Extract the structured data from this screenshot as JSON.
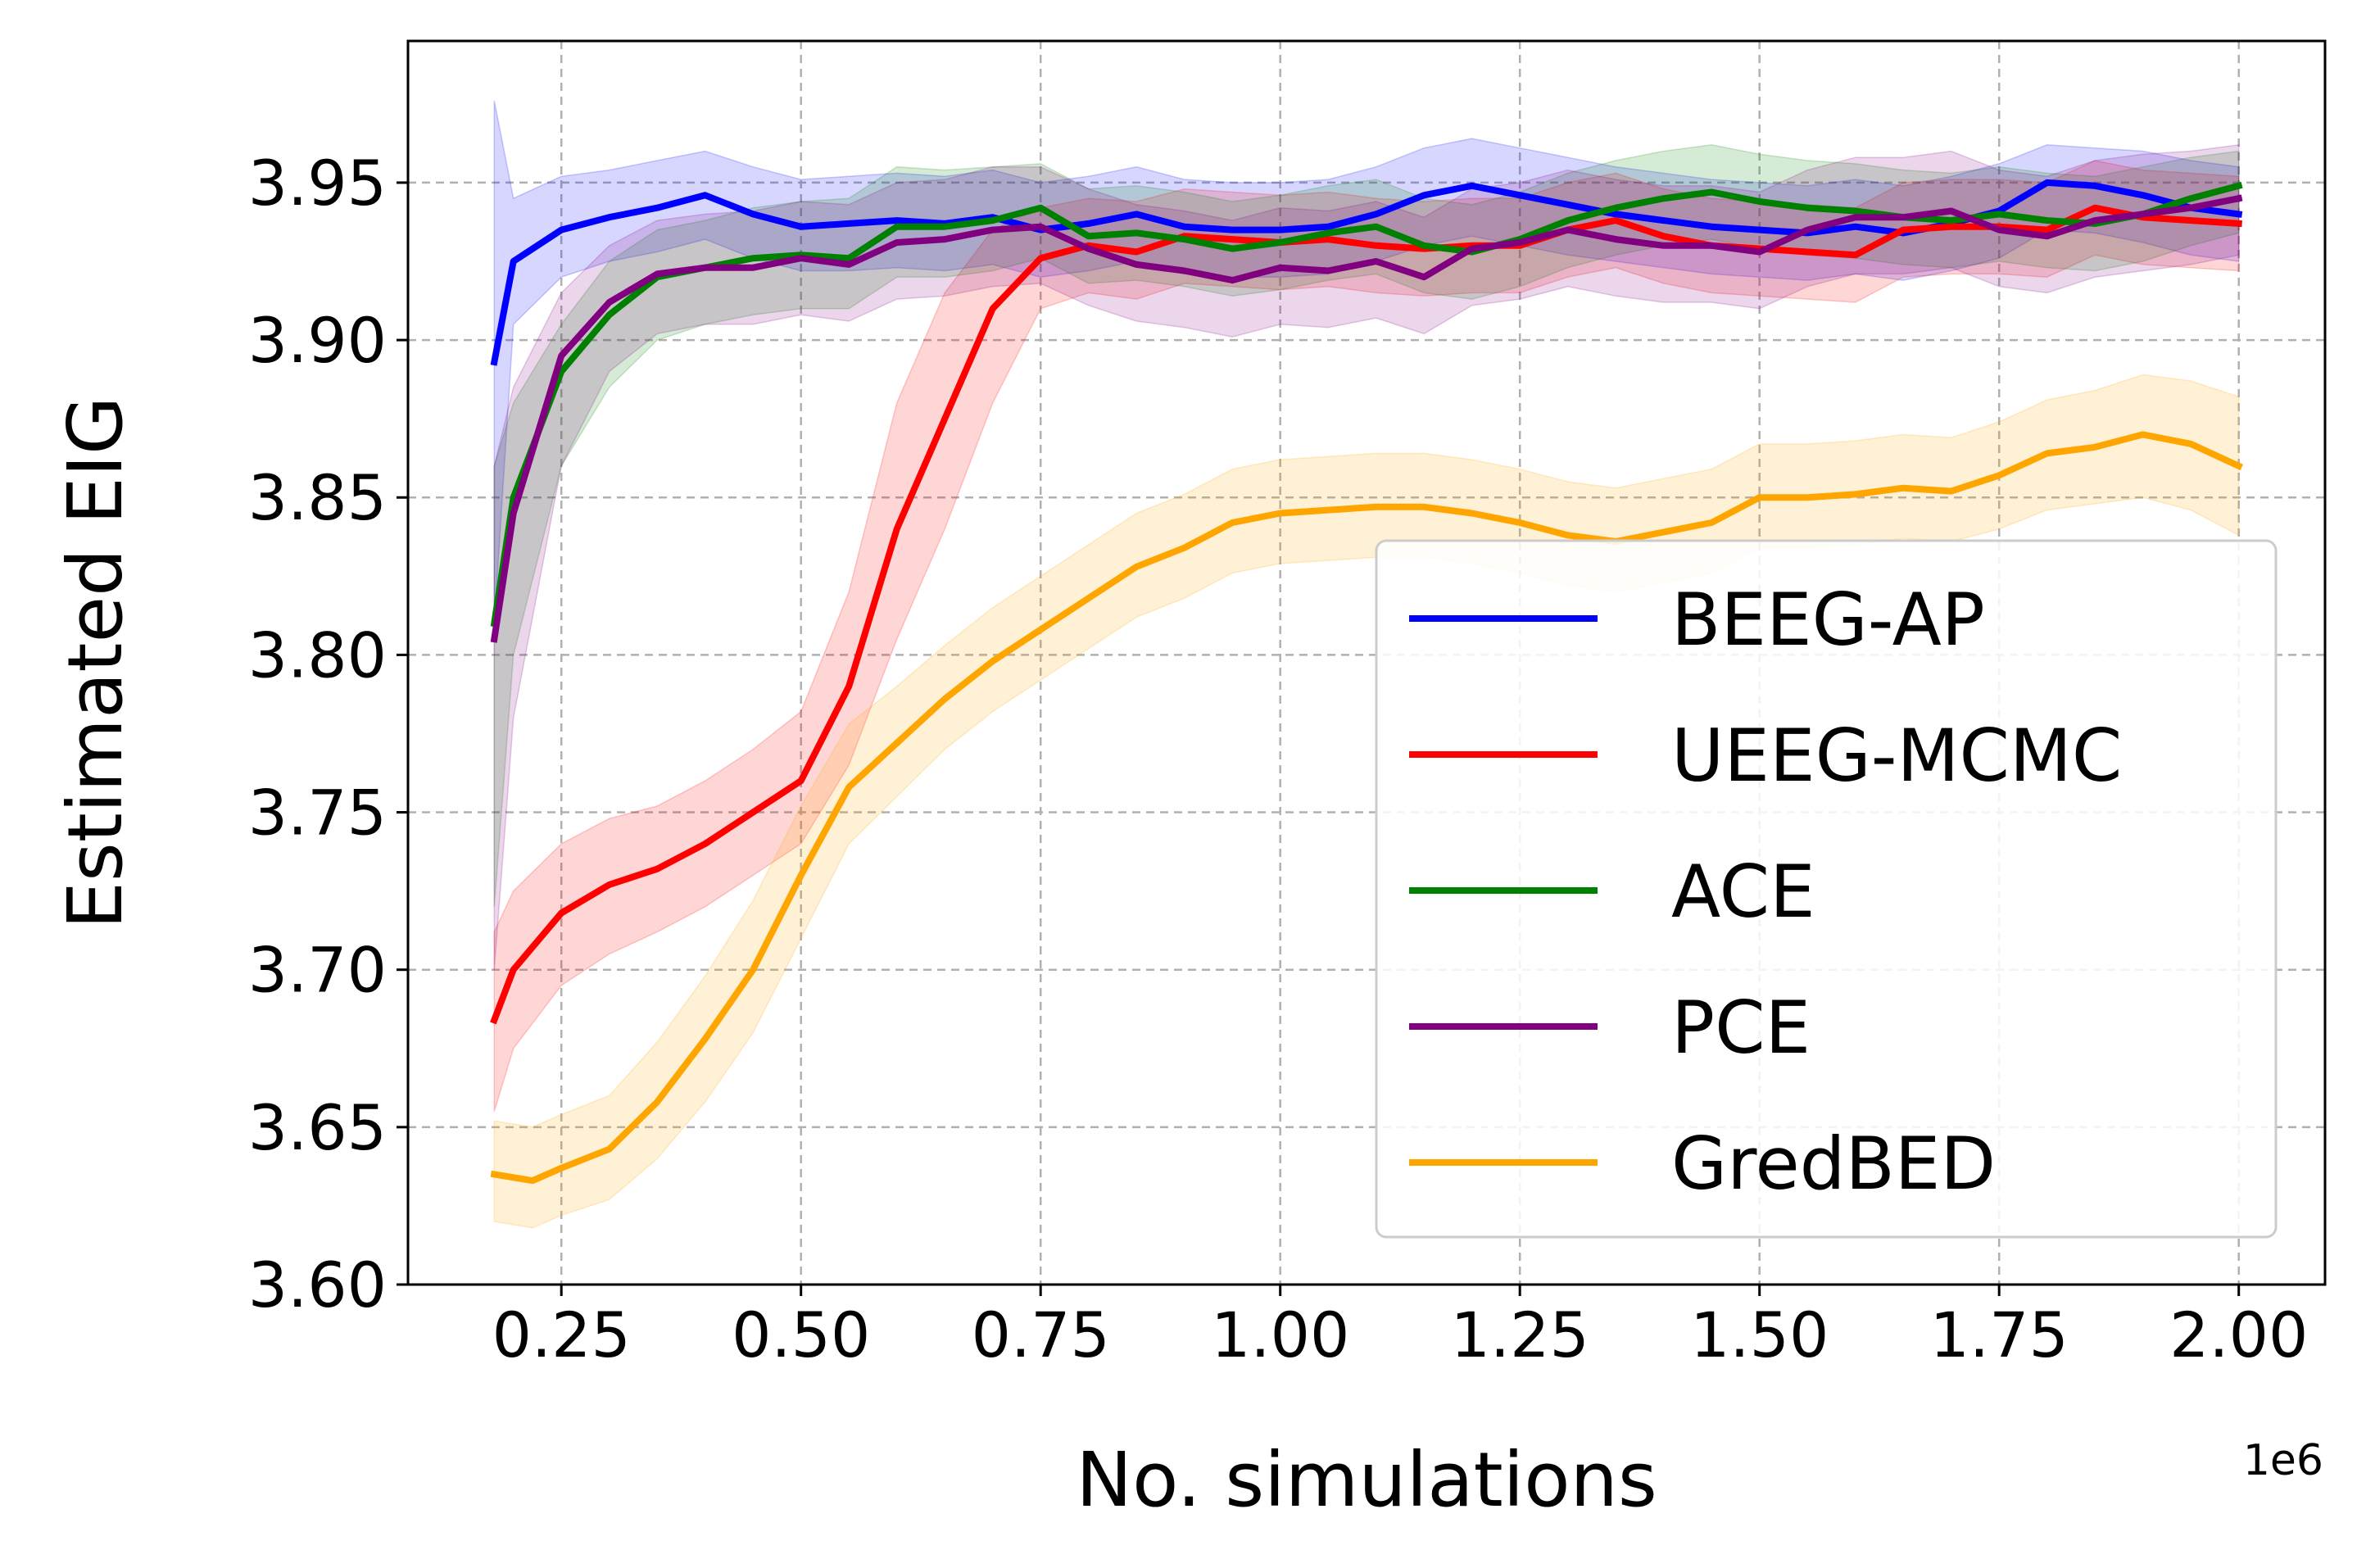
{
  "chart_data": {
    "type": "line",
    "title": "",
    "xlabel": "No. simulations",
    "ylabel": "Estimated EIG",
    "x_offset_label": "1e6",
    "xlim": [
      0.09,
      2.09
    ],
    "ylim": [
      3.6,
      3.995
    ],
    "xticks": [
      0.25,
      0.5,
      0.75,
      1.0,
      1.25,
      1.5,
      1.75,
      2.0
    ],
    "xtick_labels": [
      "0.25",
      "0.50",
      "0.75",
      "1.00",
      "1.25",
      "1.50",
      "1.75",
      "2.00"
    ],
    "yticks": [
      3.6,
      3.65,
      3.7,
      3.75,
      3.8,
      3.85,
      3.9,
      3.95
    ],
    "ytick_labels": [
      "3.60",
      "3.65",
      "3.70",
      "3.75",
      "3.80",
      "3.85",
      "3.90",
      "3.95"
    ],
    "grid": true,
    "legend_position": "lower-right",
    "series": [
      {
        "name": "BEEG-AP",
        "color": "#0000ff",
        "x": [
          0.18,
          0.2,
          0.25,
          0.3,
          0.35,
          0.4,
          0.45,
          0.5,
          0.55,
          0.6,
          0.65,
          0.7,
          0.75,
          0.8,
          0.85,
          0.9,
          0.95,
          1.0,
          1.05,
          1.1,
          1.15,
          1.2,
          1.25,
          1.3,
          1.35,
          1.4,
          1.45,
          1.5,
          1.55,
          1.6,
          1.65,
          1.7,
          1.75,
          1.8,
          1.85,
          1.9,
          1.95,
          2.0
        ],
        "y": [
          3.893,
          3.925,
          3.935,
          3.939,
          3.942,
          3.946,
          3.94,
          3.936,
          3.937,
          3.938,
          3.937,
          3.939,
          3.935,
          3.937,
          3.94,
          3.936,
          3.935,
          3.935,
          3.936,
          3.94,
          3.946,
          3.949,
          3.946,
          3.943,
          3.94,
          3.938,
          3.936,
          3.935,
          3.934,
          3.936,
          3.934,
          3.937,
          3.941,
          3.95,
          3.949,
          3.946,
          3.942,
          3.94
        ],
        "lower": [
          3.81,
          3.905,
          3.92,
          3.925,
          3.928,
          3.932,
          3.926,
          3.922,
          3.922,
          3.923,
          3.922,
          3.924,
          3.92,
          3.922,
          3.925,
          3.921,
          3.92,
          3.92,
          3.921,
          3.925,
          3.93,
          3.933,
          3.93,
          3.927,
          3.925,
          3.923,
          3.921,
          3.92,
          3.919,
          3.921,
          3.919,
          3.922,
          3.926,
          3.935,
          3.934,
          3.931,
          3.927,
          3.925
        ],
        "upper": [
          3.976,
          3.945,
          3.952,
          3.954,
          3.957,
          3.96,
          3.955,
          3.951,
          3.952,
          3.953,
          3.952,
          3.954,
          3.95,
          3.952,
          3.955,
          3.951,
          3.95,
          3.95,
          3.951,
          3.955,
          3.961,
          3.964,
          3.961,
          3.958,
          3.955,
          3.953,
          3.951,
          3.95,
          3.949,
          3.951,
          3.949,
          3.952,
          3.956,
          3.962,
          3.961,
          3.96,
          3.957,
          3.955
        ]
      },
      {
        "name": "UEEG-MCMC",
        "color": "#ff0000",
        "x": [
          0.18,
          0.2,
          0.25,
          0.3,
          0.35,
          0.4,
          0.45,
          0.5,
          0.55,
          0.6,
          0.65,
          0.7,
          0.75,
          0.8,
          0.85,
          0.9,
          0.95,
          1.0,
          1.05,
          1.1,
          1.15,
          1.2,
          1.25,
          1.3,
          1.35,
          1.4,
          1.45,
          1.5,
          1.55,
          1.6,
          1.65,
          1.7,
          1.75,
          1.8,
          1.85,
          1.9,
          1.95,
          2.0
        ],
        "y": [
          3.684,
          3.7,
          3.718,
          3.727,
          3.732,
          3.74,
          3.75,
          3.76,
          3.79,
          3.84,
          3.875,
          3.91,
          3.926,
          3.93,
          3.928,
          3.933,
          3.932,
          3.931,
          3.932,
          3.93,
          3.929,
          3.93,
          3.93,
          3.935,
          3.938,
          3.933,
          3.93,
          3.929,
          3.928,
          3.927,
          3.935,
          3.936,
          3.936,
          3.935,
          3.942,
          3.939,
          3.938,
          3.937
        ],
        "lower": [
          3.655,
          3.675,
          3.695,
          3.705,
          3.712,
          3.72,
          3.73,
          3.74,
          3.765,
          3.805,
          3.84,
          3.88,
          3.91,
          3.915,
          3.913,
          3.918,
          3.917,
          3.916,
          3.917,
          3.915,
          3.914,
          3.915,
          3.915,
          3.92,
          3.923,
          3.918,
          3.915,
          3.914,
          3.913,
          3.912,
          3.92,
          3.921,
          3.921,
          3.92,
          3.927,
          3.924,
          3.923,
          3.922
        ],
        "upper": [
          3.712,
          3.725,
          3.74,
          3.748,
          3.752,
          3.76,
          3.77,
          3.782,
          3.82,
          3.88,
          3.915,
          3.935,
          3.942,
          3.945,
          3.944,
          3.948,
          3.947,
          3.946,
          3.947,
          3.945,
          3.944,
          3.945,
          3.945,
          3.95,
          3.953,
          3.948,
          3.945,
          3.944,
          3.943,
          3.942,
          3.95,
          3.951,
          3.951,
          3.95,
          3.957,
          3.954,
          3.953,
          3.952
        ]
      },
      {
        "name": "ACE",
        "color": "#008000",
        "x": [
          0.18,
          0.2,
          0.25,
          0.3,
          0.35,
          0.4,
          0.45,
          0.5,
          0.55,
          0.6,
          0.65,
          0.7,
          0.75,
          0.8,
          0.85,
          0.9,
          0.95,
          1.0,
          1.05,
          1.1,
          1.15,
          1.2,
          1.25,
          1.3,
          1.35,
          1.4,
          1.45,
          1.5,
          1.55,
          1.6,
          1.65,
          1.7,
          1.75,
          1.8,
          1.85,
          1.9,
          1.95,
          2.0
        ],
        "y": [
          3.81,
          3.85,
          3.89,
          3.908,
          3.92,
          3.923,
          3.926,
          3.927,
          3.926,
          3.936,
          3.936,
          3.938,
          3.942,
          3.933,
          3.934,
          3.932,
          3.929,
          3.931,
          3.934,
          3.936,
          3.93,
          3.928,
          3.932,
          3.938,
          3.942,
          3.945,
          3.947,
          3.944,
          3.942,
          3.941,
          3.939,
          3.938,
          3.94,
          3.938,
          3.937,
          3.94,
          3.945,
          3.949
        ],
        "lower": [
          3.72,
          3.8,
          3.86,
          3.885,
          3.9,
          3.905,
          3.908,
          3.91,
          3.91,
          3.92,
          3.92,
          3.922,
          3.926,
          3.918,
          3.919,
          3.917,
          3.914,
          3.916,
          3.919,
          3.921,
          3.915,
          3.913,
          3.917,
          3.923,
          3.927,
          3.93,
          3.932,
          3.929,
          3.927,
          3.926,
          3.924,
          3.923,
          3.925,
          3.923,
          3.922,
          3.925,
          3.93,
          3.934
        ],
        "upper": [
          3.86,
          3.88,
          3.905,
          3.925,
          3.935,
          3.938,
          3.942,
          3.944,
          3.945,
          3.955,
          3.954,
          3.955,
          3.956,
          3.948,
          3.949,
          3.947,
          3.944,
          3.946,
          3.949,
          3.951,
          3.945,
          3.943,
          3.947,
          3.953,
          3.957,
          3.96,
          3.962,
          3.959,
          3.957,
          3.956,
          3.954,
          3.953,
          3.955,
          3.953,
          3.952,
          3.955,
          3.958,
          3.96
        ]
      },
      {
        "name": "PCE",
        "color": "#800080",
        "x": [
          0.18,
          0.2,
          0.25,
          0.3,
          0.35,
          0.4,
          0.45,
          0.5,
          0.55,
          0.6,
          0.65,
          0.7,
          0.75,
          0.8,
          0.85,
          0.9,
          0.95,
          1.0,
          1.05,
          1.1,
          1.15,
          1.2,
          1.25,
          1.3,
          1.35,
          1.4,
          1.45,
          1.5,
          1.55,
          1.6,
          1.65,
          1.7,
          1.75,
          1.8,
          1.85,
          1.9,
          1.95,
          2.0
        ],
        "y": [
          3.805,
          3.845,
          3.895,
          3.912,
          3.921,
          3.923,
          3.923,
          3.926,
          3.924,
          3.931,
          3.932,
          3.935,
          3.936,
          3.929,
          3.924,
          3.922,
          3.919,
          3.923,
          3.922,
          3.925,
          3.92,
          3.929,
          3.931,
          3.935,
          3.932,
          3.93,
          3.93,
          3.928,
          3.935,
          3.939,
          3.939,
          3.941,
          3.935,
          3.933,
          3.938,
          3.94,
          3.942,
          3.945
        ],
        "lower": [
          3.7,
          3.78,
          3.86,
          3.89,
          3.902,
          3.905,
          3.905,
          3.908,
          3.906,
          3.913,
          3.914,
          3.917,
          3.918,
          3.911,
          3.906,
          3.904,
          3.901,
          3.905,
          3.904,
          3.907,
          3.902,
          3.911,
          3.913,
          3.917,
          3.914,
          3.912,
          3.912,
          3.91,
          3.917,
          3.921,
          3.921,
          3.923,
          3.917,
          3.915,
          3.92,
          3.922,
          3.924,
          3.927
        ],
        "upper": [
          3.86,
          3.885,
          3.915,
          3.93,
          3.938,
          3.94,
          3.941,
          3.944,
          3.943,
          3.95,
          3.951,
          3.955,
          3.955,
          3.948,
          3.943,
          3.941,
          3.938,
          3.942,
          3.941,
          3.944,
          3.939,
          3.948,
          3.95,
          3.954,
          3.951,
          3.949,
          3.949,
          3.947,
          3.954,
          3.958,
          3.958,
          3.96,
          3.954,
          3.952,
          3.957,
          3.959,
          3.96,
          3.962
        ]
      },
      {
        "name": "GredBED",
        "color": "#ffa500",
        "x": [
          0.18,
          0.2,
          0.22,
          0.25,
          0.3,
          0.35,
          0.4,
          0.45,
          0.5,
          0.55,
          0.6,
          0.65,
          0.7,
          0.75,
          0.8,
          0.85,
          0.9,
          0.95,
          1.0,
          1.05,
          1.1,
          1.15,
          1.2,
          1.25,
          1.3,
          1.35,
          1.4,
          1.45,
          1.5,
          1.55,
          1.6,
          1.65,
          1.7,
          1.75,
          1.8,
          1.85,
          1.9,
          1.95,
          2.0
        ],
        "y": [
          3.635,
          3.634,
          3.633,
          3.637,
          3.643,
          3.658,
          3.678,
          3.7,
          3.73,
          3.758,
          3.772,
          3.786,
          3.798,
          3.808,
          3.818,
          3.828,
          3.834,
          3.842,
          3.845,
          3.846,
          3.847,
          3.847,
          3.845,
          3.842,
          3.838,
          3.836,
          3.839,
          3.842,
          3.85,
          3.85,
          3.851,
          3.853,
          3.852,
          3.857,
          3.864,
          3.866,
          3.87,
          3.867,
          3.86
        ],
        "lower": [
          3.62,
          3.619,
          3.618,
          3.622,
          3.627,
          3.64,
          3.658,
          3.68,
          3.71,
          3.74,
          3.755,
          3.77,
          3.782,
          3.792,
          3.802,
          3.812,
          3.818,
          3.826,
          3.829,
          3.83,
          3.831,
          3.831,
          3.829,
          3.826,
          3.822,
          3.82,
          3.823,
          3.826,
          3.834,
          3.834,
          3.835,
          3.837,
          3.836,
          3.84,
          3.846,
          3.848,
          3.85,
          3.846,
          3.838
        ],
        "upper": [
          3.652,
          3.651,
          3.65,
          3.654,
          3.66,
          3.677,
          3.698,
          3.722,
          3.752,
          3.778,
          3.79,
          3.803,
          3.815,
          3.825,
          3.835,
          3.845,
          3.851,
          3.859,
          3.862,
          3.863,
          3.864,
          3.864,
          3.862,
          3.859,
          3.855,
          3.853,
          3.856,
          3.859,
          3.867,
          3.867,
          3.868,
          3.87,
          3.869,
          3.874,
          3.881,
          3.884,
          3.889,
          3.887,
          3.882
        ]
      }
    ]
  }
}
